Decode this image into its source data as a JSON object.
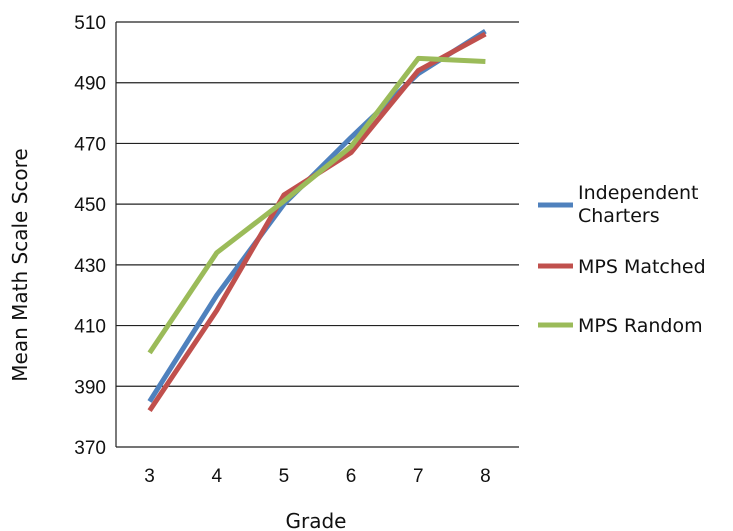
{
  "chart_data": {
    "type": "line",
    "title": "",
    "xlabel": "Grade",
    "ylabel": "Mean Math Scale Score",
    "categories": [
      "3",
      "4",
      "5",
      "6",
      "7",
      "8"
    ],
    "ylim": [
      370,
      510
    ],
    "yticks": [
      "510",
      "490",
      "470",
      "450",
      "430",
      "410",
      "390",
      "370"
    ],
    "grid": true,
    "legend_position": "right",
    "series": [
      {
        "name": "Independent Charters",
        "color": "#4F81BD",
        "values": [
          385,
          420,
          450,
          472,
          493,
          507
        ]
      },
      {
        "name": "MPS Matched",
        "color": "#C0504D",
        "values": [
          382,
          415,
          453,
          467,
          494,
          506
        ]
      },
      {
        "name": "MPS Random",
        "color": "#9BBB59",
        "values": [
          401,
          434,
          451,
          469,
          498,
          497
        ]
      }
    ]
  }
}
